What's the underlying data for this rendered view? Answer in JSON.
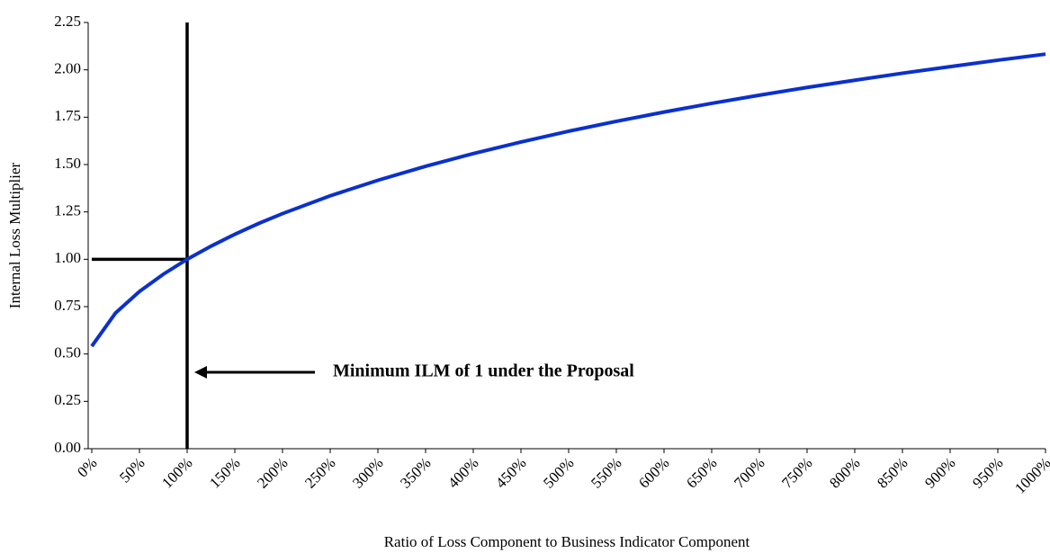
{
  "chart_data": {
    "type": "line",
    "x_label": "Ratio of Loss Component to Business Indicator Component",
    "y_label": "Internal Loss Multiplier",
    "annotation": "Minimum ILM of 1 under the Proposal",
    "x": [
      0,
      25,
      50,
      75,
      100,
      125,
      150,
      175,
      200,
      250,
      300,
      350,
      400,
      450,
      500,
      550,
      600,
      650,
      700,
      750,
      800,
      850,
      900,
      950,
      1000
    ],
    "series": [
      {
        "color": "#0b31cc",
        "values": [
          0.541,
          0.717,
          0.83,
          0.921,
          1.0,
          1.069,
          1.132,
          1.189,
          1.241,
          1.335,
          1.417,
          1.491,
          1.558,
          1.619,
          1.676,
          1.728,
          1.777,
          1.823,
          1.866,
          1.907,
          1.945,
          1.982,
          2.017,
          2.051,
          2.083
        ]
      }
    ],
    "reference_lines": [
      {
        "axis": "x",
        "value": 100
      },
      {
        "axis": "y",
        "value": 1
      }
    ],
    "xlim": [
      0,
      1000
    ],
    "xticks": [
      {
        "value": 0,
        "label": "0%"
      },
      {
        "value": 50,
        "label": "50%"
      },
      {
        "value": 100,
        "label": "100%"
      },
      {
        "value": 150,
        "label": "150%"
      },
      {
        "value": 200,
        "label": "200%"
      },
      {
        "value": 250,
        "label": "250%"
      },
      {
        "value": 300,
        "label": "300%"
      },
      {
        "value": 350,
        "label": "350%"
      },
      {
        "value": 400,
        "label": "400%"
      },
      {
        "value": 450,
        "label": "450%"
      },
      {
        "value": 500,
        "label": "500%"
      },
      {
        "value": 550,
        "label": "550%"
      },
      {
        "value": 600,
        "label": "600%"
      },
      {
        "value": 650,
        "label": "650%"
      },
      {
        "value": 700,
        "label": "700%"
      },
      {
        "value": 750,
        "label": "750%"
      },
      {
        "value": 800,
        "label": "800%"
      },
      {
        "value": 850,
        "label": "850%"
      },
      {
        "value": 900,
        "label": "900%"
      },
      {
        "value": 950,
        "label": "950%"
      },
      {
        "value": 1000,
        "label": "1000%"
      }
    ],
    "ylim": [
      0,
      2.25
    ],
    "yticks": [
      {
        "value": 0,
        "label": "0.00"
      },
      {
        "value": 0.25,
        "label": "0.25"
      },
      {
        "value": 0.5,
        "label": "0.50"
      },
      {
        "value": 0.75,
        "label": "0.75"
      },
      {
        "value": 1,
        "label": "1.00"
      },
      {
        "value": 1.25,
        "label": "1.25"
      },
      {
        "value": 1.5,
        "label": "1.50"
      },
      {
        "value": 1.75,
        "label": "1.75"
      },
      {
        "value": 2,
        "label": "2.00"
      },
      {
        "value": 2.25,
        "label": "2.25"
      }
    ],
    "grid": false
  }
}
